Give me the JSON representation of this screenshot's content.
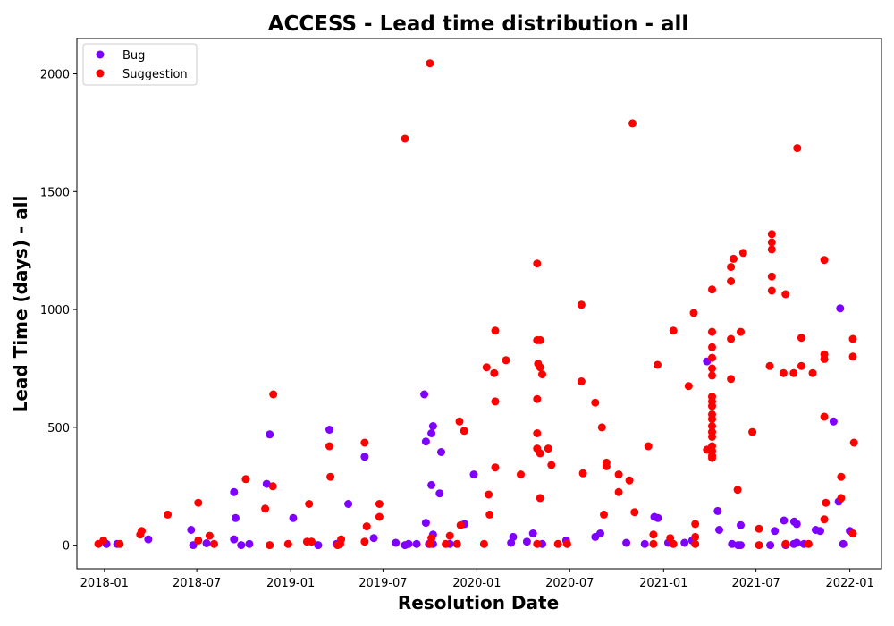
{
  "chart_data": {
    "type": "scatter",
    "title": "ACCESS - Lead time distribution - all",
    "xlabel": "Resolution Date",
    "ylabel": "Lead Time (days) - all",
    "xlim": [
      "2017-11-08",
      "2022-03-04"
    ],
    "ylim": [
      -100,
      2150
    ],
    "x_ticks": [
      "2018-01-01",
      "2018-07-01",
      "2019-01-01",
      "2019-07-01",
      "2020-01-01",
      "2020-07-01",
      "2021-01-01",
      "2021-07-01",
      "2022-01-01"
    ],
    "x_tick_labels": [
      "2018-01",
      "2018-07",
      "2019-01",
      "2019-07",
      "2020-01",
      "2020-07",
      "2021-01",
      "2021-07",
      "2022-01"
    ],
    "y_ticks": [
      0,
      500,
      1000,
      1500,
      2000
    ],
    "y_tick_labels": [
      "0",
      "500",
      "1000",
      "1500",
      "2000"
    ],
    "legend_position": "top-left",
    "grid": false,
    "series": [
      {
        "name": "Bug",
        "color": "#7f00ff",
        "points": [
          [
            "2018-01-05",
            5
          ],
          [
            "2018-01-26",
            5
          ],
          [
            "2018-03-28",
            25
          ],
          [
            "2018-06-20",
            65
          ],
          [
            "2018-06-24",
            0
          ],
          [
            "2018-07-20",
            8
          ],
          [
            "2018-09-12",
            225
          ],
          [
            "2018-09-15",
            115
          ],
          [
            "2018-09-12",
            25
          ],
          [
            "2018-09-26",
            0
          ],
          [
            "2018-10-12",
            5
          ],
          [
            "2018-11-15",
            260
          ],
          [
            "2018-11-21",
            470
          ],
          [
            "2019-01-06",
            115
          ],
          [
            "2019-02-24",
            0
          ],
          [
            "2019-03-18",
            490
          ],
          [
            "2019-04-01",
            5
          ],
          [
            "2019-04-24",
            175
          ],
          [
            "2019-05-26",
            375
          ],
          [
            "2019-06-13",
            30
          ],
          [
            "2019-07-26",
            10
          ],
          [
            "2019-08-13",
            0
          ],
          [
            "2019-08-20",
            5
          ],
          [
            "2019-09-05",
            5
          ],
          [
            "2019-09-20",
            640
          ],
          [
            "2019-09-23",
            440
          ],
          [
            "2019-09-23",
            95
          ],
          [
            "2019-09-29",
            5
          ],
          [
            "2019-10-04",
            475
          ],
          [
            "2019-10-04",
            255
          ],
          [
            "2019-10-07",
            505
          ],
          [
            "2019-10-07",
            45
          ],
          [
            "2019-10-07",
            5
          ],
          [
            "2019-10-20",
            220
          ],
          [
            "2019-10-23",
            395
          ],
          [
            "2019-11-09",
            5
          ],
          [
            "2019-12-08",
            90
          ],
          [
            "2019-12-26",
            300
          ],
          [
            "2020-03-08",
            10
          ],
          [
            "2020-03-12",
            35
          ],
          [
            "2020-04-08",
            15
          ],
          [
            "2020-04-20",
            50
          ],
          [
            "2020-05-08",
            5
          ],
          [
            "2020-06-24",
            20
          ],
          [
            "2020-08-20",
            35
          ],
          [
            "2020-08-30",
            50
          ],
          [
            "2020-10-20",
            10
          ],
          [
            "2020-11-25",
            5
          ],
          [
            "2020-12-14",
            120
          ],
          [
            "2020-12-21",
            115
          ],
          [
            "2021-01-10",
            10
          ],
          [
            "2021-02-11",
            10
          ],
          [
            "2021-02-26",
            20
          ],
          [
            "2021-03-27",
            780
          ],
          [
            "2021-04-17",
            145
          ],
          [
            "2021-04-20",
            65
          ],
          [
            "2021-05-15",
            5
          ],
          [
            "2021-05-27",
            0
          ],
          [
            "2021-06-01",
            85
          ],
          [
            "2021-06-01",
            0
          ],
          [
            "2021-07-29",
            0
          ],
          [
            "2021-08-07",
            60
          ],
          [
            "2021-08-25",
            105
          ],
          [
            "2021-08-28",
            0
          ],
          [
            "2021-09-13",
            5
          ],
          [
            "2021-09-14",
            100
          ],
          [
            "2021-09-19",
            90
          ],
          [
            "2021-09-19",
            10
          ],
          [
            "2021-10-03",
            5
          ],
          [
            "2021-10-26",
            65
          ],
          [
            "2021-11-04",
            60
          ],
          [
            "2021-11-30",
            525
          ],
          [
            "2021-12-10",
            185
          ],
          [
            "2021-12-13",
            1005
          ],
          [
            "2021-12-19",
            5
          ],
          [
            "2022-01-01",
            60
          ]
        ]
      },
      {
        "name": "Suggestion",
        "color": "#ff0000",
        "points": [
          [
            "2017-12-20",
            5
          ],
          [
            "2017-12-30",
            20
          ],
          [
            "2018-01-31",
            5
          ],
          [
            "2018-03-12",
            45
          ],
          [
            "2018-03-15",
            60
          ],
          [
            "2018-05-05",
            130
          ],
          [
            "2018-07-04",
            180
          ],
          [
            "2018-07-04",
            20
          ],
          [
            "2018-07-26",
            40
          ],
          [
            "2018-08-04",
            5
          ],
          [
            "2018-10-05",
            280
          ],
          [
            "2018-11-12",
            155
          ],
          [
            "2018-11-21",
            0
          ],
          [
            "2018-11-28",
            640
          ],
          [
            "2018-11-27",
            250
          ],
          [
            "2018-12-27",
            5
          ],
          [
            "2019-02-02",
            15
          ],
          [
            "2019-02-06",
            175
          ],
          [
            "2019-02-11",
            15
          ],
          [
            "2019-03-18",
            420
          ],
          [
            "2019-03-20",
            290
          ],
          [
            "2019-04-03",
            0
          ],
          [
            "2019-04-08",
            5
          ],
          [
            "2019-04-10",
            25
          ],
          [
            "2019-05-26",
            435
          ],
          [
            "2019-05-26",
            15
          ],
          [
            "2019-05-30",
            80
          ],
          [
            "2019-06-24",
            175
          ],
          [
            "2019-06-24",
            120
          ],
          [
            "2019-08-13",
            1725
          ],
          [
            "2019-10-01",
            2045
          ],
          [
            "2019-10-01",
            5
          ],
          [
            "2019-10-04",
            30
          ],
          [
            "2019-11-01",
            5
          ],
          [
            "2019-11-09",
            40
          ],
          [
            "2019-11-23",
            5
          ],
          [
            "2019-11-28",
            525
          ],
          [
            "2019-11-30",
            85
          ],
          [
            "2019-12-07",
            485
          ],
          [
            "2020-01-15",
            5
          ],
          [
            "2020-01-20",
            755
          ],
          [
            "2020-01-24",
            215
          ],
          [
            "2020-01-26",
            130
          ],
          [
            "2020-02-04",
            730
          ],
          [
            "2020-02-06",
            610
          ],
          [
            "2020-02-06",
            330
          ],
          [
            "2020-02-06",
            910
          ],
          [
            "2020-02-27",
            785
          ],
          [
            "2020-03-27",
            300
          ],
          [
            "2020-04-28",
            1195
          ],
          [
            "2020-04-28",
            870
          ],
          [
            "2020-04-28",
            620
          ],
          [
            "2020-04-28",
            475
          ],
          [
            "2020-04-28",
            410
          ],
          [
            "2020-04-28",
            5
          ],
          [
            "2020-04-30",
            770
          ],
          [
            "2020-05-04",
            870
          ],
          [
            "2020-05-04",
            755
          ],
          [
            "2020-05-04",
            390
          ],
          [
            "2020-05-04",
            200
          ],
          [
            "2020-05-08",
            725
          ],
          [
            "2020-05-20",
            410
          ],
          [
            "2020-05-26",
            340
          ],
          [
            "2020-06-08",
            5
          ],
          [
            "2020-06-26",
            5
          ],
          [
            "2020-07-24",
            1020
          ],
          [
            "2020-07-24",
            695
          ],
          [
            "2020-07-27",
            305
          ],
          [
            "2020-08-20",
            605
          ],
          [
            "2020-09-02",
            500
          ],
          [
            "2020-09-06",
            130
          ],
          [
            "2020-09-11",
            350
          ],
          [
            "2020-09-11",
            335
          ],
          [
            "2020-10-05",
            300
          ],
          [
            "2020-10-05",
            225
          ],
          [
            "2020-10-26",
            275
          ],
          [
            "2020-11-01",
            1790
          ],
          [
            "2020-11-05",
            140
          ],
          [
            "2020-12-02",
            420
          ],
          [
            "2020-12-12",
            45
          ],
          [
            "2020-12-12",
            5
          ],
          [
            "2020-12-20",
            765
          ],
          [
            "2021-01-14",
            30
          ],
          [
            "2021-01-20",
            910
          ],
          [
            "2021-01-20",
            5
          ],
          [
            "2021-02-19",
            675
          ],
          [
            "2021-03-01",
            985
          ],
          [
            "2021-03-04",
            90
          ],
          [
            "2021-03-04",
            35
          ],
          [
            "2021-03-04",
            5
          ],
          [
            "2021-03-27",
            405
          ],
          [
            "2021-04-06",
            1085
          ],
          [
            "2021-04-06",
            905
          ],
          [
            "2021-04-06",
            840
          ],
          [
            "2021-04-06",
            795
          ],
          [
            "2021-04-06",
            750
          ],
          [
            "2021-04-06",
            720
          ],
          [
            "2021-04-06",
            630
          ],
          [
            "2021-04-06",
            610
          ],
          [
            "2021-04-06",
            590
          ],
          [
            "2021-04-06",
            555
          ],
          [
            "2021-04-06",
            535
          ],
          [
            "2021-04-06",
            505
          ],
          [
            "2021-04-06",
            480
          ],
          [
            "2021-04-06",
            460
          ],
          [
            "2021-04-06",
            420
          ],
          [
            "2021-04-06",
            400
          ],
          [
            "2021-04-06",
            380
          ],
          [
            "2021-04-06",
            370
          ],
          [
            "2021-05-13",
            1180
          ],
          [
            "2021-05-13",
            1120
          ],
          [
            "2021-05-13",
            875
          ],
          [
            "2021-05-13",
            705
          ],
          [
            "2021-05-18",
            1215
          ],
          [
            "2021-05-26",
            235
          ],
          [
            "2021-06-01",
            905
          ],
          [
            "2021-06-06",
            1240
          ],
          [
            "2021-06-24",
            480
          ],
          [
            "2021-07-07",
            70
          ],
          [
            "2021-07-07",
            0
          ],
          [
            "2021-07-28",
            760
          ],
          [
            "2021-08-01",
            1320
          ],
          [
            "2021-08-01",
            1285
          ],
          [
            "2021-08-01",
            1255
          ],
          [
            "2021-08-01",
            1140
          ],
          [
            "2021-08-01",
            1080
          ],
          [
            "2021-08-24",
            730
          ],
          [
            "2021-08-28",
            1065
          ],
          [
            "2021-08-28",
            5
          ],
          [
            "2021-09-13",
            730
          ],
          [
            "2021-09-20",
            1685
          ],
          [
            "2021-09-28",
            880
          ],
          [
            "2021-09-28",
            760
          ],
          [
            "2021-10-12",
            5
          ],
          [
            "2021-10-20",
            730
          ],
          [
            "2021-11-12",
            1210
          ],
          [
            "2021-11-12",
            810
          ],
          [
            "2021-11-12",
            790
          ],
          [
            "2021-11-12",
            545
          ],
          [
            "2021-11-12",
            110
          ],
          [
            "2021-11-15",
            180
          ],
          [
            "2021-12-15",
            290
          ],
          [
            "2021-12-15",
            200
          ],
          [
            "2022-01-07",
            875
          ],
          [
            "2022-01-07",
            800
          ],
          [
            "2022-01-07",
            50
          ],
          [
            "2022-01-09",
            435
          ]
        ]
      }
    ]
  }
}
